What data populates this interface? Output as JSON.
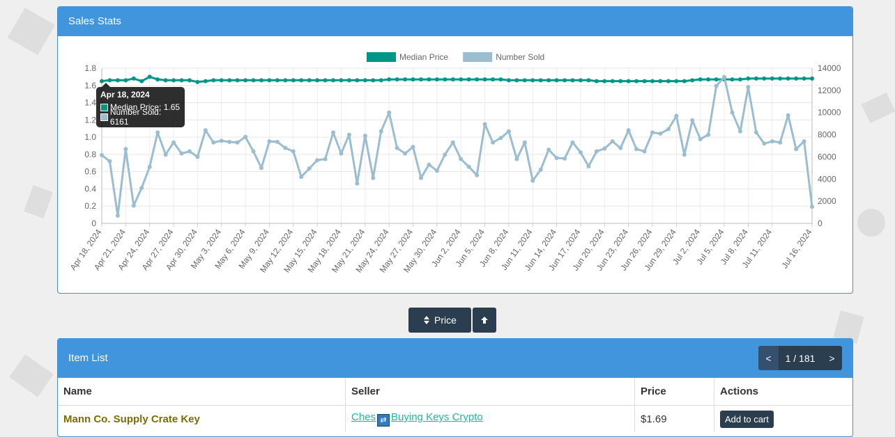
{
  "stats_panel": {
    "title": "Sales Stats"
  },
  "chart_data": {
    "type": "line",
    "x": [
      "Apr 18, 2024",
      "Apr 19, 2024",
      "Apr 20, 2024",
      "Apr 21, 2024",
      "Apr 22, 2024",
      "Apr 23, 2024",
      "Apr 24, 2024",
      "Apr 25, 2024",
      "Apr 26, 2024",
      "Apr 27, 2024",
      "Apr 28, 2024",
      "Apr 29, 2024",
      "Apr 30, 2024",
      "May 1, 2024",
      "May 2, 2024",
      "May 3, 2024",
      "May 4, 2024",
      "May 5, 2024",
      "May 6, 2024",
      "May 7, 2024",
      "May 8, 2024",
      "May 9, 2024",
      "May 10, 2024",
      "May 11, 2024",
      "May 12, 2024",
      "May 13, 2024",
      "May 14, 2024",
      "May 15, 2024",
      "May 16, 2024",
      "May 17, 2024",
      "May 18, 2024",
      "May 19, 2024",
      "May 20, 2024",
      "May 21, 2024",
      "May 22, 2024",
      "May 23, 2024",
      "May 24, 2024",
      "May 25, 2024",
      "May 26, 2024",
      "May 27, 2024",
      "May 28, 2024",
      "May 29, 2024",
      "May 30, 2024",
      "May 31, 2024",
      "Jun 1, 2024",
      "Jun 2, 2024",
      "Jun 3, 2024",
      "Jun 4, 2024",
      "Jun 5, 2024",
      "Jun 6, 2024",
      "Jun 7, 2024",
      "Jun 8, 2024",
      "Jun 9, 2024",
      "Jun 10, 2024",
      "Jun 11, 2024",
      "Jun 12, 2024",
      "Jun 13, 2024",
      "Jun 14, 2024",
      "Jun 15, 2024",
      "Jun 16, 2024",
      "Jun 17, 2024",
      "Jun 18, 2024",
      "Jun 19, 2024",
      "Jun 20, 2024",
      "Jun 21, 2024",
      "Jun 22, 2024",
      "Jun 23, 2024",
      "Jun 24, 2024",
      "Jun 25, 2024",
      "Jun 26, 2024",
      "Jun 27, 2024",
      "Jun 28, 2024",
      "Jun 29, 2024",
      "Jun 30, 2024",
      "Jul 1, 2024",
      "Jul 2, 2024",
      "Jul 3, 2024",
      "Jul 4, 2024",
      "Jul 5, 2024",
      "Jul 6, 2024",
      "Jul 7, 2024",
      "Jul 8, 2024",
      "Jul 9, 2024",
      "Jul 10, 2024",
      "Jul 11, 2024",
      "Jul 12, 2024",
      "Jul 13, 2024",
      "Jul 14, 2024",
      "Jul 15, 2024",
      "Jul 16, 2024"
    ],
    "xticks": [
      "Apr 18, 2024",
      "Apr 21, 2024",
      "Apr 24, 2024",
      "Apr 27, 2024",
      "Apr 30, 2024",
      "May 3, 2024",
      "May 6, 2024",
      "May 9, 2024",
      "May 12, 2024",
      "May 15, 2024",
      "May 18, 2024",
      "May 21, 2024",
      "May 24, 2024",
      "May 27, 2024",
      "May 30, 2024",
      "Jun 2, 2024",
      "Jun 5, 2024",
      "Jun 8, 2024",
      "Jun 11, 2024",
      "Jun 14, 2024",
      "Jun 17, 2024",
      "Jun 20, 2024",
      "Jun 23, 2024",
      "Jun 26, 2024",
      "Jun 29, 2024",
      "Jul 2, 2024",
      "Jul 5, 2024",
      "Jul 8, 2024",
      "Jul 11, 2024",
      "Jul 16, 2024"
    ],
    "y_left_ticks": [
      "0",
      "0.2",
      "0.4",
      "0.6",
      "0.8",
      "1.0",
      "1.2",
      "1.4",
      "1.6",
      "1.8"
    ],
    "y_right_ticks": [
      "0",
      "2000",
      "4000",
      "6000",
      "8000",
      "10000",
      "12000",
      "14000"
    ],
    "ylim_left": [
      0,
      1.8
    ],
    "ylim_right": [
      0,
      14000
    ],
    "grid": true,
    "legend_position": "top",
    "series": [
      {
        "name": "Median Price",
        "axis": "left",
        "color": "#009688",
        "values": [
          1.65,
          1.66,
          1.66,
          1.66,
          1.68,
          1.65,
          1.7,
          1.67,
          1.66,
          1.66,
          1.66,
          1.66,
          1.64,
          1.65,
          1.66,
          1.66,
          1.66,
          1.66,
          1.66,
          1.66,
          1.66,
          1.66,
          1.66,
          1.66,
          1.66,
          1.66,
          1.66,
          1.66,
          1.66,
          1.66,
          1.66,
          1.66,
          1.66,
          1.66,
          1.66,
          1.66,
          1.67,
          1.67,
          1.67,
          1.67,
          1.67,
          1.67,
          1.67,
          1.67,
          1.67,
          1.67,
          1.67,
          1.67,
          1.67,
          1.67,
          1.67,
          1.66,
          1.66,
          1.66,
          1.66,
          1.66,
          1.66,
          1.66,
          1.66,
          1.66,
          1.66,
          1.66,
          1.65,
          1.65,
          1.65,
          1.65,
          1.65,
          1.65,
          1.65,
          1.65,
          1.65,
          1.65,
          1.65,
          1.65,
          1.66,
          1.67,
          1.67,
          1.67,
          1.67,
          1.67,
          1.67,
          1.68,
          1.68,
          1.68,
          1.68,
          1.68,
          1.68,
          1.68,
          1.68,
          1.68
        ]
      },
      {
        "name": "Number Sold",
        "axis": "right",
        "color": "#9abdd0",
        "values": [
          6161,
          5600,
          700,
          6700,
          1600,
          3200,
          5100,
          8200,
          6200,
          7300,
          6300,
          6500,
          6000,
          8400,
          7300,
          7450,
          7350,
          7300,
          7800,
          6500,
          5000,
          7400,
          7350,
          6800,
          6500,
          4200,
          4950,
          5700,
          5800,
          8200,
          6300,
          8000,
          3600,
          7900,
          4100,
          8300,
          10000,
          6800,
          6300,
          6900,
          4100,
          5300,
          4750,
          6200,
          7300,
          5800,
          5100,
          4350,
          8950,
          7300,
          7700,
          8300,
          5800,
          7300,
          3850,
          4850,
          6650,
          5900,
          5850,
          7300,
          6400,
          5150,
          6500,
          6750,
          7400,
          6800,
          8400,
          6700,
          6500,
          8200,
          8100,
          8500,
          9700,
          6200,
          9300,
          7600,
          8000,
          12400,
          13200,
          10000,
          8300,
          12300,
          8200,
          7200,
          7400,
          7300,
          9750,
          6700,
          7400,
          1500
        ]
      }
    ],
    "tooltip": {
      "title": "Apr 18, 2024",
      "line1": "Median Price: 1.65",
      "line2": "Number Sold: 6161"
    }
  },
  "sort_bar": {
    "price_label": "Price"
  },
  "item_list": {
    "title": "Item List",
    "pager": {
      "prev": "<",
      "page": "1 / 181",
      "next": ">"
    },
    "columns": [
      "Name",
      "Seller",
      "Price",
      "Actions"
    ],
    "rows": [
      {
        "name": "Mann Co. Supply Crate Key",
        "seller_a": "Ches",
        "seller_b": "Buying Keys Crypto",
        "price": "$1.69",
        "action": "Add to cart"
      }
    ]
  }
}
